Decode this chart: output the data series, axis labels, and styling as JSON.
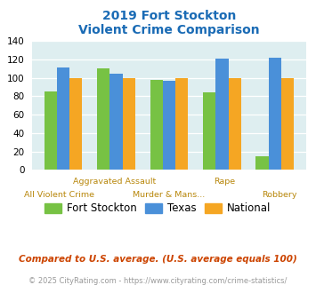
{
  "title_line1": "2019 Fort Stockton",
  "title_line2": "Violent Crime Comparison",
  "fort_stockton": [
    85,
    110,
    98,
    84,
    15
  ],
  "texas": [
    111,
    105,
    97,
    121,
    122
  ],
  "national": [
    100,
    100,
    100,
    100,
    100
  ],
  "colors": {
    "fort_stockton": "#77c244",
    "texas": "#4a90d9",
    "national": "#f5a623"
  },
  "ylim": [
    0,
    140
  ],
  "yticks": [
    0,
    20,
    40,
    60,
    80,
    100,
    120,
    140
  ],
  "background_color": "#deeef0",
  "title_color": "#1a6bb5",
  "xlabel_color": "#b8870b",
  "top_row_labels": [
    [
      "Aggravated Assault",
      1
    ],
    [
      "Rape",
      3
    ]
  ],
  "bot_row_labels": [
    [
      "All Violent Crime",
      0
    ],
    [
      "Murder & Mans...",
      2
    ],
    [
      "Robbery",
      4
    ]
  ],
  "legend_labels": [
    "Fort Stockton",
    "Texas",
    "National"
  ],
  "footnote1": "Compared to U.S. average. (U.S. average equals 100)",
  "footnote2": "© 2025 CityRating.com - https://www.cityrating.com/crime-statistics/",
  "footnote1_color": "#cc4400",
  "footnote2_color": "#999999"
}
